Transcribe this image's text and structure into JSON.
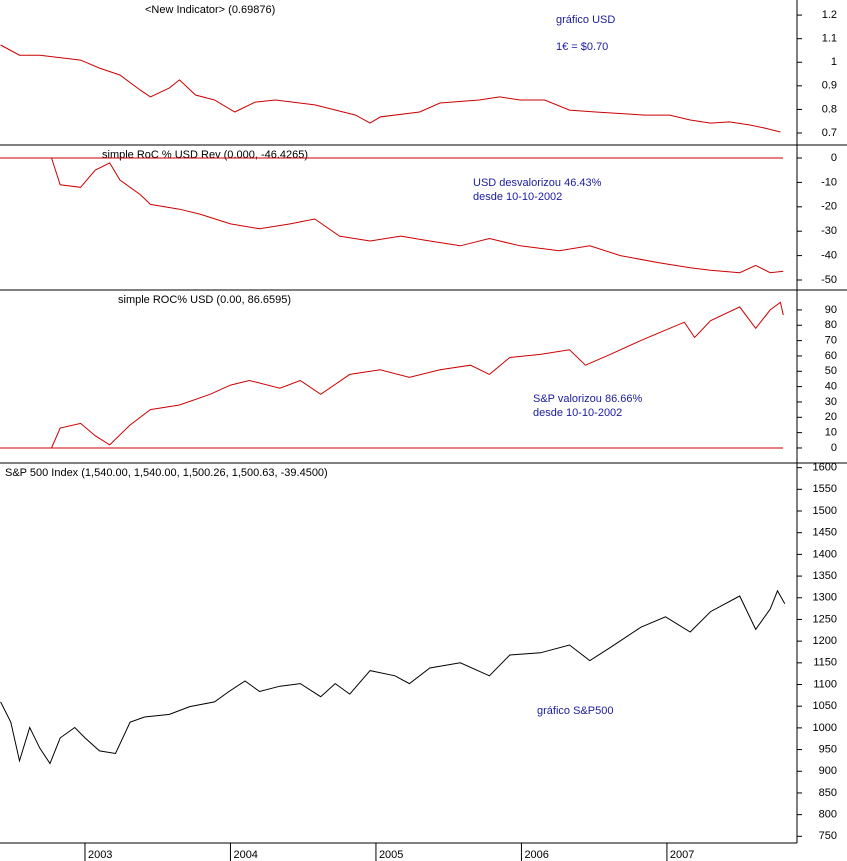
{
  "chart_data": [
    {
      "type": "line",
      "title": "<New Indicator> (0.69876)",
      "annotations": [
        "gráfico USD",
        "1€ = $0.70"
      ],
      "xlim": [
        2002.416,
        2007.894
      ],
      "ylim": [
        0.649,
        1.264
      ],
      "yticks": [
        0.7,
        0.8,
        0.9,
        1.0,
        1.1,
        1.2
      ],
      "x": [
        2002.42,
        2002.55,
        2002.69,
        2002.97,
        2003.1,
        2003.24,
        2003.38,
        2003.45,
        2003.58,
        2003.65,
        2003.76,
        2003.89,
        2004.03,
        2004.17,
        2004.31,
        2004.58,
        2004.86,
        2004.96,
        2005.03,
        2005.3,
        2005.44,
        2005.71,
        2005.85,
        2005.99,
        2006.16,
        2006.33,
        2006.51,
        2006.85,
        2007.02,
        2007.16,
        2007.3,
        2007.43,
        2007.57,
        2007.67,
        2007.78
      ],
      "series": [
        {
          "color": "#cc0000",
          "values": [
            1.073,
            1.03,
            1.03,
            1.009,
            0.975,
            0.946,
            0.882,
            0.853,
            0.891,
            0.925,
            0.861,
            0.84,
            0.789,
            0.831,
            0.84,
            0.819,
            0.776,
            0.742,
            0.768,
            0.789,
            0.827,
            0.84,
            0.853,
            0.84,
            0.84,
            0.797,
            0.789,
            0.776,
            0.776,
            0.755,
            0.742,
            0.747,
            0.734,
            0.721,
            0.704
          ]
        }
      ]
    },
    {
      "type": "line",
      "title": "simple RoC % USD Rev (0.000, -46.4265)",
      "annotations": [
        "USD desvalorizou 46.43%",
        "desde 10-10-2002"
      ],
      "xlim": [
        2002.416,
        2007.894
      ],
      "ylim": [
        -54.1,
        5.33
      ],
      "yticks": [
        0,
        -10,
        -20,
        -30,
        -40,
        -50
      ],
      "reference_line": 0,
      "x": [
        2002.77,
        2002.83,
        2002.97,
        2003.07,
        2003.17,
        2003.24,
        2003.38,
        2003.45,
        2003.65,
        2003.79,
        2004.0,
        2004.2,
        2004.41,
        2004.58,
        2004.75,
        2004.96,
        2005.17,
        2005.37,
        2005.58,
        2005.78,
        2005.99,
        2006.26,
        2006.47,
        2006.68,
        2006.95,
        2007.16,
        2007.3,
        2007.5,
        2007.61,
        2007.71,
        2007.8
      ],
      "series": [
        {
          "color": "#cc0000",
          "values": [
            0,
            -11,
            -12,
            -5,
            -2,
            -9,
            -15,
            -19,
            -21,
            -23,
            -27,
            -29,
            -27,
            -25,
            -32,
            -34,
            -32,
            -34,
            -36,
            -33,
            -36,
            -38,
            -36,
            -40,
            -43,
            -45,
            -46,
            -47,
            -44,
            -47,
            -46.4
          ]
        }
      ]
    },
    {
      "type": "line",
      "title": "simple ROC% USD (0.00, 86.6595)",
      "annotations": [
        "S&P valorizou 86.66%",
        "desde 10-10-2002"
      ],
      "xlim": [
        2002.416,
        2007.894
      ],
      "ylim": [
        -9.8,
        103.0
      ],
      "yticks": [
        0,
        10,
        20,
        30,
        40,
        50,
        60,
        70,
        80,
        90
      ],
      "reference_line": 0,
      "x": [
        2002.77,
        2002.83,
        2002.97,
        2003.07,
        2003.17,
        2003.31,
        2003.45,
        2003.65,
        2003.86,
        2004.0,
        2004.13,
        2004.34,
        2004.48,
        2004.62,
        2004.82,
        2005.03,
        2005.23,
        2005.44,
        2005.65,
        2005.78,
        2005.92,
        2006.13,
        2006.33,
        2006.44,
        2006.61,
        2006.82,
        2007.02,
        2007.12,
        2007.19,
        2007.3,
        2007.5,
        2007.61,
        2007.71,
        2007.78,
        2007.8
      ],
      "series": [
        {
          "color": "#cc0000",
          "values": [
            0,
            13,
            16,
            8,
            2,
            15,
            25,
            28,
            35,
            41,
            44,
            39,
            44,
            35,
            48,
            51,
            46,
            51,
            54,
            48,
            59,
            61,
            64,
            54,
            61,
            70,
            78,
            82,
            72,
            83,
            92,
            78,
            90,
            95,
            86.7
          ]
        }
      ]
    },
    {
      "type": "line",
      "title": "S&P 500 Index (1,540.00, 1,540.00, 1,500.26, 1,500.63, -39.4500)",
      "annotations": [
        "gráfico S&P500"
      ],
      "xlim": [
        2002.416,
        2007.894
      ],
      "ylim": [
        734.6,
        1610.7
      ],
      "yticks": [
        750,
        800,
        850,
        900,
        950,
        1000,
        1050,
        1100,
        1150,
        1200,
        1250,
        1300,
        1350,
        1400,
        1450,
        1500,
        1550,
        1600
      ],
      "xticks": [
        2003,
        2004,
        2005,
        2006,
        2007
      ],
      "x": [
        2002.42,
        2002.49,
        2002.55,
        2002.62,
        2002.69,
        2002.76,
        2002.83,
        2002.93,
        2003.0,
        2003.1,
        2003.21,
        2003.31,
        2003.41,
        2003.58,
        2003.72,
        2003.89,
        2003.99,
        2004.1,
        2004.2,
        2004.34,
        2004.48,
        2004.62,
        2004.72,
        2004.82,
        2004.96,
        2005.13,
        2005.23,
        2005.37,
        2005.58,
        2005.78,
        2005.92,
        2006.13,
        2006.33,
        2006.47,
        2006.61,
        2006.82,
        2006.99,
        2007.16,
        2007.3,
        2007.5,
        2007.61,
        2007.71,
        2007.76,
        2007.81
      ],
      "series": [
        {
          "color": "#000000",
          "values": [
            1060,
            1013,
            924,
            1001,
            953,
            918,
            977,
            1001,
            977,
            947,
            941,
            1013,
            1025,
            1031,
            1049,
            1060,
            1084,
            1108,
            1084,
            1096,
            1102,
            1072,
            1102,
            1078,
            1132,
            1120,
            1102,
            1138,
            1150,
            1120,
            1168,
            1173,
            1191,
            1155,
            1185,
            1232,
            1256,
            1221,
            1268,
            1304,
            1227,
            1274,
            1316,
            1286
          ]
        }
      ]
    }
  ]
}
